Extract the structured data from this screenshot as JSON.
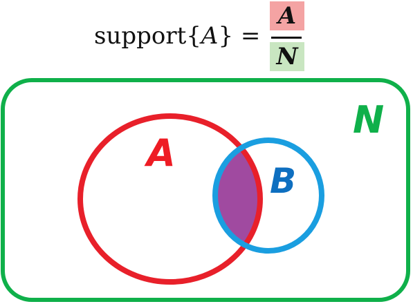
{
  "formula": {
    "lhs_prefix": "support{",
    "lhs_var": "A",
    "lhs_suffix": "} =",
    "numerator": "A",
    "denominator": "N"
  },
  "venn": {
    "universe_label": "N",
    "set_a_label": "A",
    "set_b_label": "B"
  },
  "colors": {
    "universe": "#0fb04a",
    "set_a": "#e8202a",
    "set_b": "#1a9ee0",
    "intersection": "#a04aa0",
    "label_a": "#ee1c24",
    "label_b": "#0e6fc0",
    "numerator_bg": "#f4a3a3",
    "denominator_bg": "#c9e6c1"
  }
}
